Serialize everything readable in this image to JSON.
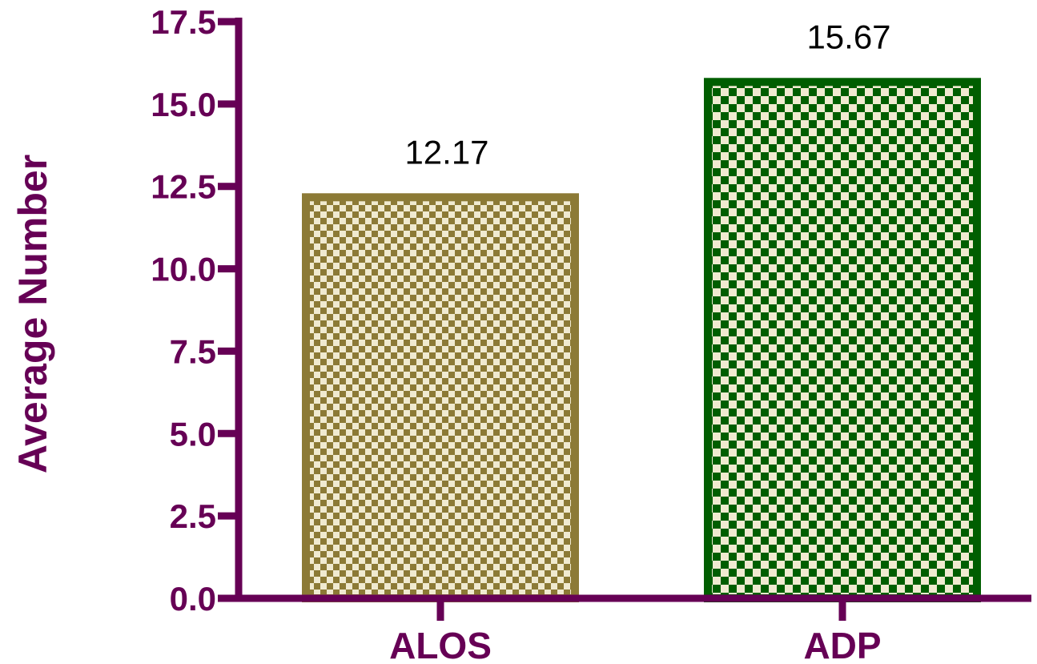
{
  "chart_data": {
    "type": "bar",
    "categories": [
      "ALOS",
      "ADP"
    ],
    "values": [
      12.17,
      15.67
    ],
    "data_labels": [
      "12.17",
      "15.67"
    ],
    "xlabel": "",
    "ylabel": "Average Number",
    "ylim": [
      0,
      17.5
    ],
    "yticks": [
      "0.0",
      "2.5",
      "5.0",
      "7.5",
      "10.0",
      "12.5",
      "15.0",
      "17.5"
    ],
    "grid": false,
    "legend": "none",
    "colors": {
      "axis": "#660055",
      "bars": [
        {
          "border": "#8c7a36",
          "fill_a": "#8c7a36",
          "fill_b": "#f0ead0"
        },
        {
          "border": "#005e00",
          "fill_a": "#005e00",
          "fill_b": "#f0ead0"
        }
      ]
    }
  }
}
